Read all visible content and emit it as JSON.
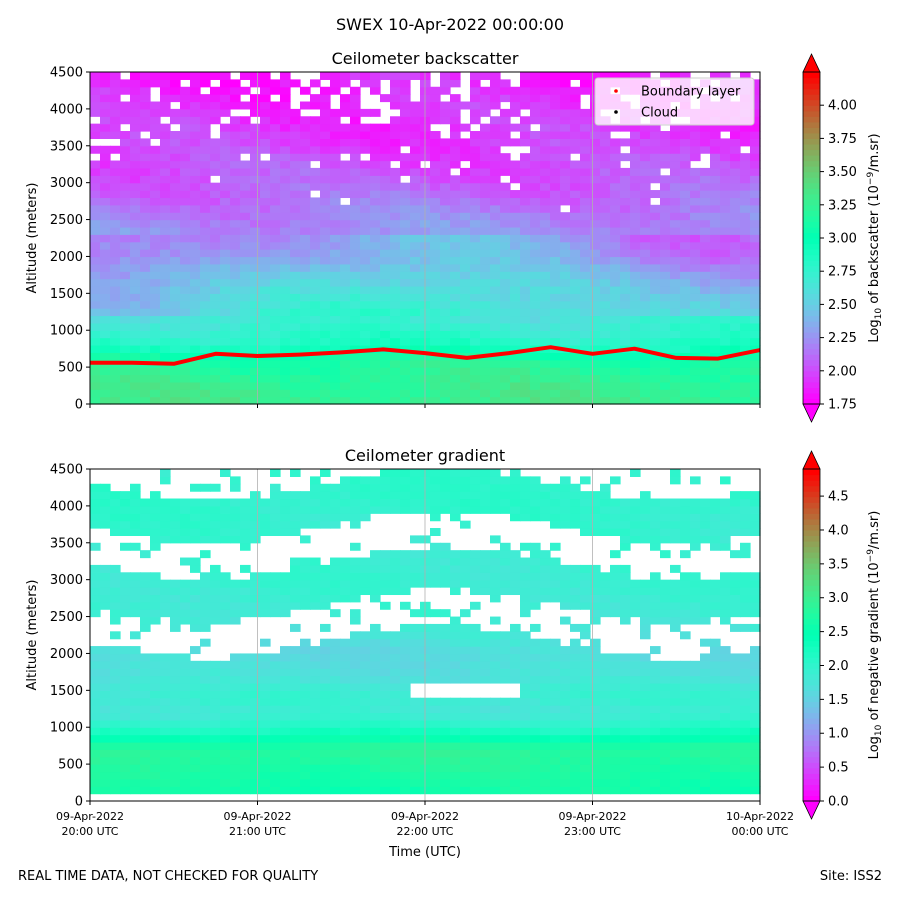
{
  "figure": {
    "title": "SWEX 10-Apr-2022 00:00:00",
    "footer_left": "REAL TIME DATA, NOT CHECKED FOR QUALITY",
    "footer_right": "Site: ISS2"
  },
  "chart_data": [
    {
      "type": "heatmap",
      "title": "Ceilometer backscatter",
      "xlabel": "",
      "ylabel": "Altitude (meters)",
      "ylim": [
        0,
        4500
      ],
      "yticks": [
        0,
        500,
        1000,
        1500,
        2000,
        2500,
        3000,
        3500,
        4000,
        4500
      ],
      "xlim": [
        0,
        4
      ],
      "xtick_labels": [],
      "colorbar": {
        "label_prefix": "Log",
        "label_sub": "10",
        "label_mid": " of backscatter (10",
        "label_sup": "−9",
        "label_suffix": "/m.sr)",
        "range": [
          1.75,
          4.25
        ],
        "ticks": [
          "1.75",
          "2.00",
          "2.25",
          "2.50",
          "2.75",
          "3.00",
          "3.25",
          "3.50",
          "3.75",
          "4.00"
        ],
        "tick_values": [
          1.75,
          2.0,
          2.25,
          2.5,
          2.75,
          3.0,
          3.25,
          3.5,
          3.75,
          4.0
        ]
      },
      "legend": {
        "position": "top-right",
        "entries": [
          {
            "label": "Boundary layer",
            "color": "#ff0000"
          },
          {
            "label": "Cloud",
            "color": "#000000"
          }
        ]
      },
      "boundary_layer": {
        "color": "#ff0000",
        "x_hours": [
          0,
          0.25,
          0.5,
          0.75,
          1.0,
          1.25,
          1.5,
          1.75,
          2.0,
          2.25,
          2.5,
          2.75,
          3.0,
          3.25,
          3.5,
          3.75,
          4.0
        ],
        "altitude_m": [
          560,
          560,
          545,
          680,
          650,
          670,
          700,
          740,
          690,
          625,
          690,
          770,
          680,
          750,
          625,
          615,
          730
        ]
      },
      "profile": {
        "heights_m": [
          0,
          300,
          600,
          800,
          1000,
          1300,
          1700,
          2000,
          2500,
          3000,
          3500,
          4000,
          4500
        ],
        "log_values": [
          3.3,
          3.25,
          3.15,
          2.85,
          2.75,
          2.6,
          2.45,
          2.3,
          2.2,
          2.05,
          1.95,
          1.9,
          1.85
        ]
      }
    },
    {
      "type": "heatmap",
      "title": "Ceilometer gradient",
      "xlabel": "Time (UTC)",
      "ylabel": "Altitude (meters)",
      "ylim": [
        0,
        4500
      ],
      "yticks": [
        0,
        500,
        1000,
        1500,
        2000,
        2500,
        3000,
        3500,
        4000,
        4500
      ],
      "xlim": [
        0,
        4
      ],
      "xtick_labels": [
        [
          "09-Apr-2022",
          "20:00 UTC"
        ],
        [
          "09-Apr-2022",
          "21:00 UTC"
        ],
        [
          "09-Apr-2022",
          "22:00 UTC"
        ],
        [
          "09-Apr-2022",
          "23:00 UTC"
        ],
        [
          "10-Apr-2022",
          "00:00 UTC"
        ]
      ],
      "colorbar": {
        "label_prefix": "Log",
        "label_sub": "10",
        "label_mid": " of negative gradient (10",
        "label_sup": "−9",
        "label_suffix": "/m.sr)",
        "range": [
          0.0,
          4.9
        ],
        "ticks": [
          "0.0",
          "0.5",
          "1.0",
          "1.5",
          "2.0",
          "2.5",
          "3.0",
          "3.5",
          "4.0",
          "4.5"
        ],
        "tick_values": [
          0.0,
          0.5,
          1.0,
          1.5,
          2.0,
          2.5,
          3.0,
          3.5,
          4.0,
          4.5
        ]
      },
      "profile": {
        "heights_m": [
          150,
          400,
          700,
          1000,
          1200,
          1400,
          1700,
          2000,
          2500,
          3000,
          3500,
          4000,
          4500
        ],
        "log_values": [
          2.6,
          2.7,
          2.85,
          2.1,
          1.8,
          1.9,
          1.7,
          1.6,
          1.85,
          1.9,
          1.9,
          2.0,
          2.0
        ]
      }
    }
  ]
}
